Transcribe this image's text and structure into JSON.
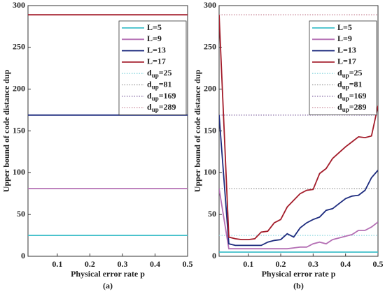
{
  "chart_data": [
    {
      "type": "line",
      "ylabel": "Upper bound of code distance dup",
      "xlabel": "Physical error rate p",
      "caption": "(a)",
      "xlim": [
        0.01,
        0.5
      ],
      "ylim": [
        0,
        300
      ],
      "xticks": [
        0.1,
        0.2,
        0.3,
        0.4,
        0.5
      ],
      "yticks": [
        0,
        50,
        100,
        150,
        200,
        250,
        300
      ],
      "series": [
        {
          "name": "L=5",
          "color": "#3fbfc9",
          "x": [
            0.01,
            0.5
          ],
          "values": [
            25,
            25
          ]
        },
        {
          "name": "L=9",
          "color": "#b46fb4",
          "x": [
            0.01,
            0.5
          ],
          "values": [
            81,
            81
          ]
        },
        {
          "name": "L=13",
          "color": "#1d2b7e",
          "x": [
            0.01,
            0.5
          ],
          "values": [
            169,
            169
          ]
        },
        {
          "name": "L=17",
          "color": "#a31c2a",
          "x": [
            0.01,
            0.5
          ],
          "values": [
            289,
            289
          ]
        },
        {
          "name": {
            "base": "d",
            "sub": "up",
            "rest": "=25"
          },
          "color": "#8fd8e0",
          "dash": "dotted",
          "x": [
            0.01,
            0.5
          ],
          "values": [
            25,
            25
          ]
        },
        {
          "name": {
            "base": "d",
            "sub": "up",
            "rest": "=81"
          },
          "color": "#999999",
          "dash": "dotted",
          "x": [
            0.01,
            0.5
          ],
          "values": [
            81,
            81
          ]
        },
        {
          "name": {
            "base": "d",
            "sub": "up",
            "rest": "=169"
          },
          "color": "#8a6fa8",
          "dash": "dotted",
          "x": [
            0.01,
            0.5
          ],
          "values": [
            169,
            169
          ]
        },
        {
          "name": {
            "base": "d",
            "sub": "up",
            "rest": "=289"
          },
          "color": "#c98a9a",
          "dash": "dotted",
          "x": [
            0.01,
            0.5
          ],
          "values": [
            289,
            289
          ]
        }
      ]
    },
    {
      "type": "line",
      "ylabel": "Upper bound of code distance dup",
      "xlabel": "Physical error rate p",
      "caption": "(b)",
      "xlim": [
        0.01,
        0.5
      ],
      "ylim": [
        0,
        300
      ],
      "xticks": [
        0.1,
        0.2,
        0.3,
        0.4,
        0.5
      ],
      "yticks": [
        0,
        50,
        100,
        150,
        200,
        250,
        300
      ],
      "series": [
        {
          "name": "L=5",
          "color": "#3fbfc9",
          "x": [
            0.01,
            0.04,
            0.06,
            0.08,
            0.1,
            0.12,
            0.14,
            0.16,
            0.18,
            0.2,
            0.22,
            0.24,
            0.26,
            0.28,
            0.3,
            0.32,
            0.34,
            0.36,
            0.38,
            0.4,
            0.42,
            0.44,
            0.46,
            0.48,
            0.5
          ],
          "values": [
            5,
            5,
            5,
            5,
            5,
            5,
            5,
            5,
            5,
            5,
            5,
            5,
            5,
            5,
            5,
            5,
            5,
            5,
            5,
            5,
            5,
            5,
            5,
            5,
            5
          ]
        },
        {
          "name": "L=9",
          "color": "#b46fb4",
          "x": [
            0.01,
            0.04,
            0.06,
            0.08,
            0.1,
            0.12,
            0.14,
            0.16,
            0.18,
            0.2,
            0.22,
            0.24,
            0.26,
            0.28,
            0.3,
            0.32,
            0.34,
            0.36,
            0.38,
            0.4,
            0.42,
            0.44,
            0.46,
            0.48,
            0.5
          ],
          "values": [
            81,
            9,
            9,
            9,
            9,
            9,
            9,
            9,
            9,
            9,
            9,
            10,
            11,
            11,
            15,
            17,
            15,
            20,
            22,
            24,
            26,
            31,
            31,
            35,
            41
          ]
        },
        {
          "name": "L=13",
          "color": "#1d2b7e",
          "x": [
            0.01,
            0.04,
            0.06,
            0.08,
            0.1,
            0.12,
            0.14,
            0.16,
            0.18,
            0.2,
            0.22,
            0.24,
            0.26,
            0.28,
            0.3,
            0.32,
            0.34,
            0.36,
            0.38,
            0.4,
            0.42,
            0.44,
            0.46,
            0.48,
            0.5
          ],
          "values": [
            169,
            15,
            13,
            13,
            13,
            13,
            13,
            17,
            19,
            20,
            27,
            23,
            34,
            40,
            44,
            47,
            55,
            57,
            63,
            69,
            72,
            73,
            79,
            94,
            103
          ]
        },
        {
          "name": "L=17",
          "color": "#a31c2a",
          "x": [
            0.01,
            0.04,
            0.06,
            0.08,
            0.1,
            0.12,
            0.14,
            0.16,
            0.18,
            0.2,
            0.22,
            0.24,
            0.26,
            0.28,
            0.3,
            0.32,
            0.34,
            0.36,
            0.38,
            0.4,
            0.42,
            0.44,
            0.46,
            0.48,
            0.5
          ],
          "values": [
            289,
            23,
            21,
            20,
            20,
            21,
            29,
            30,
            40,
            44,
            59,
            67,
            75,
            79,
            80,
            99,
            105,
            117,
            124,
            131,
            137,
            143,
            142,
            144,
            180
          ]
        },
        {
          "name": {
            "base": "d",
            "sub": "up",
            "rest": "=25"
          },
          "color": "#8fd8e0",
          "dash": "dotted",
          "x": [
            0.01,
            0.5
          ],
          "values": [
            25,
            25
          ]
        },
        {
          "name": {
            "base": "d",
            "sub": "up",
            "rest": "=81"
          },
          "color": "#999999",
          "dash": "dotted",
          "x": [
            0.01,
            0.5
          ],
          "values": [
            81,
            81
          ]
        },
        {
          "name": {
            "base": "d",
            "sub": "up",
            "rest": "=169"
          },
          "color": "#8a6fa8",
          "dash": "dotted",
          "x": [
            0.01,
            0.5
          ],
          "values": [
            169,
            169
          ]
        },
        {
          "name": {
            "base": "d",
            "sub": "up",
            "rest": "=289"
          },
          "color": "#c98a9a",
          "dash": "dotted",
          "x": [
            0.01,
            0.5
          ],
          "values": [
            289,
            289
          ]
        }
      ]
    }
  ]
}
